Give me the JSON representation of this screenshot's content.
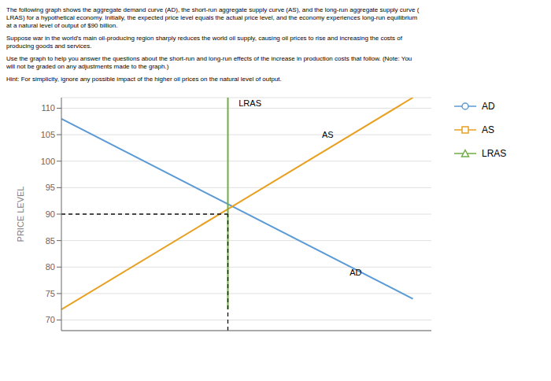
{
  "chart_data": {
    "type": "line",
    "subtitle": [
      [
        "The following graph shows the aggregate demand curve (AD), the short-run aggregate supply curve (AS), and the long-run aggregate supply curve (",
        "LRAS) for a hypothetical economy. Initially, the expected price level equals the actual price level, and the economy experiences long-run equilibrium",
        "at a natural level of output of $90 billion."
      ],
      [
        "Suppose war in the world's main oil-producing region sharply reduces the world oil supply, causing oil prices to rise and increasing the costs of",
        "producing goods and services."
      ],
      [
        "Use the graph to help you answer the questions about the short-run and long-run effects of the increase in production costs that follow. (Note: You",
        "will not be graded on any adjustments made to the graph.)"
      ],
      [
        "Hint: For simplicity, ignore any possible impact of the higher oil prices on the natural level of output."
      ]
    ],
    "ylabel": "PRICE LEVEL",
    "xlim": [
      75,
      115
    ],
    "ylim": [
      68,
      112
    ],
    "yticks": [
      70,
      75,
      80,
      85,
      90,
      95,
      100,
      105,
      110
    ],
    "tick_labels": "y",
    "grid": true,
    "legend": "right",
    "series": [
      {
        "name": "AD",
        "color": "#5b9bd5",
        "marker": "circle",
        "x": [
          75,
          113
        ],
        "values": [
          108,
          74
        ]
      },
      {
        "name": "AS",
        "color": "#e8a020",
        "marker": "square",
        "x": [
          75,
          113
        ],
        "values": [
          72,
          112
        ]
      },
      {
        "name": "LRAS",
        "color": "#70ad47",
        "marker": "triangle",
        "x": [
          93,
          93
        ],
        "values": [
          72,
          112
        ]
      }
    ],
    "equilibrium": {
      "x": 93,
      "y": 90,
      "color": "#111111"
    },
    "annotations": [
      {
        "text": "LRAS",
        "x": 94,
        "y": 111
      },
      {
        "text": "AS",
        "x": 103,
        "y": 105
      },
      {
        "text": "AD",
        "x": 106,
        "y": 79
      }
    ]
  }
}
